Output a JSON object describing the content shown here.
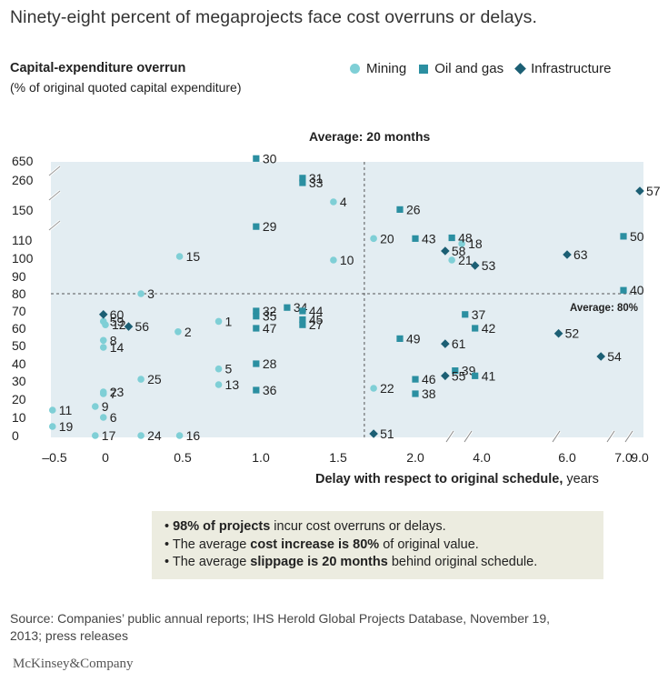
{
  "header": {
    "title": "Ninety-eight percent of megaprojects face cost overruns or delays."
  },
  "y_axis": {
    "title": "Capital-expenditure overrun",
    "subtitle": "(% of original quoted capital expenditure)"
  },
  "legend": {
    "mining": "Mining",
    "oil_gas": "Oil and gas",
    "infrastructure": "Infrastructure"
  },
  "average_months_label": "Average: 20 months",
  "average_percent_label": "Average: 80%",
  "x_axis": {
    "title_bold": "Delay with respect to original schedule,",
    "title_unit": " years"
  },
  "callout": {
    "line1_bold": "98% of projects",
    "line1_rest": " incur cost overruns or delays.",
    "line2_pre": "The average ",
    "line2_bold": "cost increase is 80%",
    "line2_rest": " of original value.",
    "line3_pre": "The average ",
    "line3_bold": "slippage is 20 months",
    "line3_rest": " behind original schedule."
  },
  "footer": {
    "source": "Source: Companies’ public annual reports; IHS Herold Global Projects Database, November 19, 2013; press releases",
    "brand": "McKinsey&Company"
  },
  "colors": {
    "mining": "#7fcfd6",
    "oil_gas": "#2b8fa1",
    "infrastructure": "#1c5f74",
    "plot_bg": "#e3edf2"
  },
  "chart_data": {
    "type": "scatter",
    "title": "Ninety-eight percent of megaprojects face cost overruns or delays.",
    "xlabel": "Delay with respect to original schedule, years",
    "ylabel": "Capital-expenditure overrun (% of original quoted capital expenditure)",
    "x_ticks": [
      "–0.5",
      "0",
      "0.5",
      "1.0",
      "1.5",
      "2.0",
      "4.0",
      "6.0",
      "7.0",
      "9.0"
    ],
    "y_ticks": [
      "0",
      "10",
      "20",
      "30",
      "40",
      "50",
      "60",
      "70",
      "80",
      "90",
      "100",
      "110",
      "150",
      "260",
      "650"
    ],
    "x_axis_breaks": "axis broken after 2.0 years; 4.0, 6.0 and 7.0–9.0 compressed",
    "y_axis_breaks": "axis broken above 110, 150 and 260",
    "average_delay_years": 1.67,
    "average_overrun_percent": 80,
    "series": [
      {
        "name": "Mining",
        "marker": "circle",
        "points": [
          {
            "id": "1",
            "x": 0.73,
            "y": 64
          },
          {
            "id": "2",
            "x": 0.47,
            "y": 58
          },
          {
            "id": "3",
            "x": 0.23,
            "y": 80
          },
          {
            "id": "4",
            "x": 1.47,
            "y": 180
          },
          {
            "id": "5",
            "x": 0.73,
            "y": 37
          },
          {
            "id": "6",
            "x": -0.02,
            "y": 10
          },
          {
            "id": "7",
            "x": -0.02,
            "y": 23
          },
          {
            "id": "8",
            "x": -0.02,
            "y": 53
          },
          {
            "id": "9",
            "x": -0.1,
            "y": 16
          },
          {
            "id": "10",
            "x": 1.47,
            "y": 99
          },
          {
            "id": "11",
            "x": -0.52,
            "y": 14
          },
          {
            "id": "12",
            "x": 0.0,
            "y": 62
          },
          {
            "id": "13",
            "x": 0.73,
            "y": 28
          },
          {
            "id": "14",
            "x": -0.02,
            "y": 49
          },
          {
            "id": "15",
            "x": 0.48,
            "y": 101
          },
          {
            "id": "16",
            "x": 0.48,
            "y": 0
          },
          {
            "id": "17",
            "x": -0.1,
            "y": 0
          },
          {
            "id": "18",
            "x": 3.4,
            "y": 108
          },
          {
            "id": "19",
            "x": -0.52,
            "y": 5
          },
          {
            "id": "20",
            "x": 1.73,
            "y": 112
          },
          {
            "id": "21",
            "x": 3.1,
            "y": 99
          },
          {
            "id": "22",
            "x": 1.73,
            "y": 26
          },
          {
            "id": "23",
            "x": -0.02,
            "y": 24
          },
          {
            "id": "24",
            "x": 0.23,
            "y": 0
          },
          {
            "id": "25",
            "x": 0.23,
            "y": 31
          },
          {
            "id": "59",
            "x": -0.02,
            "y": 64
          }
        ]
      },
      {
        "name": "Oil and gas",
        "marker": "square",
        "points": [
          {
            "id": "26",
            "x": 1.9,
            "y": 152
          },
          {
            "id": "27",
            "x": 1.27,
            "y": 62
          },
          {
            "id": "28",
            "x": 0.97,
            "y": 40
          },
          {
            "id": "29",
            "x": 0.97,
            "y": 128
          },
          {
            "id": "30",
            "x": 0.97,
            "y": 700
          },
          {
            "id": "31",
            "x": 1.27,
            "y": 300
          },
          {
            "id": "32",
            "x": 0.97,
            "y": 70
          },
          {
            "id": "33",
            "x": 1.27,
            "y": 250
          },
          {
            "id": "34",
            "x": 1.17,
            "y": 72
          },
          {
            "id": "35",
            "x": 0.97,
            "y": 67
          },
          {
            "id": "36",
            "x": 0.97,
            "y": 25
          },
          {
            "id": "37",
            "x": 3.5,
            "y": 68
          },
          {
            "id": "38",
            "x": 2.0,
            "y": 23
          },
          {
            "id": "39",
            "x": 3.2,
            "y": 36
          },
          {
            "id": "40",
            "x": 7.0,
            "y": 82
          },
          {
            "id": "41",
            "x": 3.8,
            "y": 33
          },
          {
            "id": "42",
            "x": 3.8,
            "y": 60
          },
          {
            "id": "43",
            "x": 2.0,
            "y": 112
          },
          {
            "id": "44",
            "x": 1.27,
            "y": 70
          },
          {
            "id": "45",
            "x": 1.27,
            "y": 65
          },
          {
            "id": "46",
            "x": 2.0,
            "y": 31
          },
          {
            "id": "47",
            "x": 0.97,
            "y": 60
          },
          {
            "id": "48",
            "x": 3.1,
            "y": 113
          },
          {
            "id": "49",
            "x": 1.9,
            "y": 54
          },
          {
            "id": "50",
            "x": 7.0,
            "y": 115
          }
        ]
      },
      {
        "name": "Infrastructure",
        "marker": "diamond",
        "points": [
          {
            "id": "51",
            "x": 1.73,
            "y": 1
          },
          {
            "id": "52",
            "x": 5.8,
            "y": 57
          },
          {
            "id": "53",
            "x": 3.8,
            "y": 96
          },
          {
            "id": "54",
            "x": 6.6,
            "y": 44
          },
          {
            "id": "55",
            "x": 2.9,
            "y": 33
          },
          {
            "id": "56",
            "x": 0.15,
            "y": 61
          },
          {
            "id": "57",
            "x": 9.0,
            "y": 220
          },
          {
            "id": "58",
            "x": 2.9,
            "y": 104
          },
          {
            "id": "60",
            "x": -0.02,
            "y": 68
          },
          {
            "id": "61",
            "x": 2.9,
            "y": 51
          },
          {
            "id": "63",
            "x": 6.0,
            "y": 102
          }
        ]
      }
    ]
  }
}
